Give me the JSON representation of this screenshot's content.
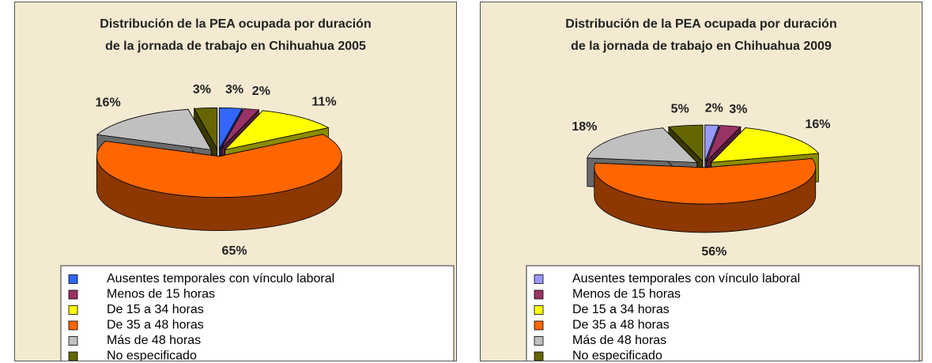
{
  "chart_data": [
    {
      "type": "pie",
      "title": "Distribución de la PEA ocupada por duración\nde la jornada de trabajo en Chihuahua 2005",
      "categories": [
        "Ausentes temporales con vínculo laboral",
        "Menos de 15 horas",
        "De 15 a 34 horas",
        "De 35 a 48 horas",
        "Más de 48 horas",
        "No especificado"
      ],
      "values": [
        3,
        2,
        11,
        65,
        16,
        3
      ],
      "value_labels": [
        "3%",
        "2%",
        "11%",
        "65%",
        "16%",
        "3%"
      ],
      "colors": [
        "#3366ff",
        "#993366",
        "#ffff00",
        "#ff6600",
        "#c0c0c0",
        "#666600"
      ]
    },
    {
      "type": "pie",
      "title": "Distribución de la PEA ocupada por duración\nde la jornada de trabajo en Chihuahua 2009",
      "categories": [
        "Ausentes temporales con vínculo laboral",
        "Menos de 15 horas",
        "De 15 a 34 horas",
        "De 35 a 48 horas",
        "Más de 48 horas",
        "No especificado"
      ],
      "values": [
        2,
        3,
        16,
        56,
        18,
        5
      ],
      "value_labels": [
        "2%",
        "3%",
        "16%",
        "56%",
        "18%",
        "5%"
      ],
      "colors": [
        "#9999ff",
        "#993366",
        "#ffff00",
        "#ff6600",
        "#c0c0c0",
        "#666600"
      ]
    }
  ]
}
